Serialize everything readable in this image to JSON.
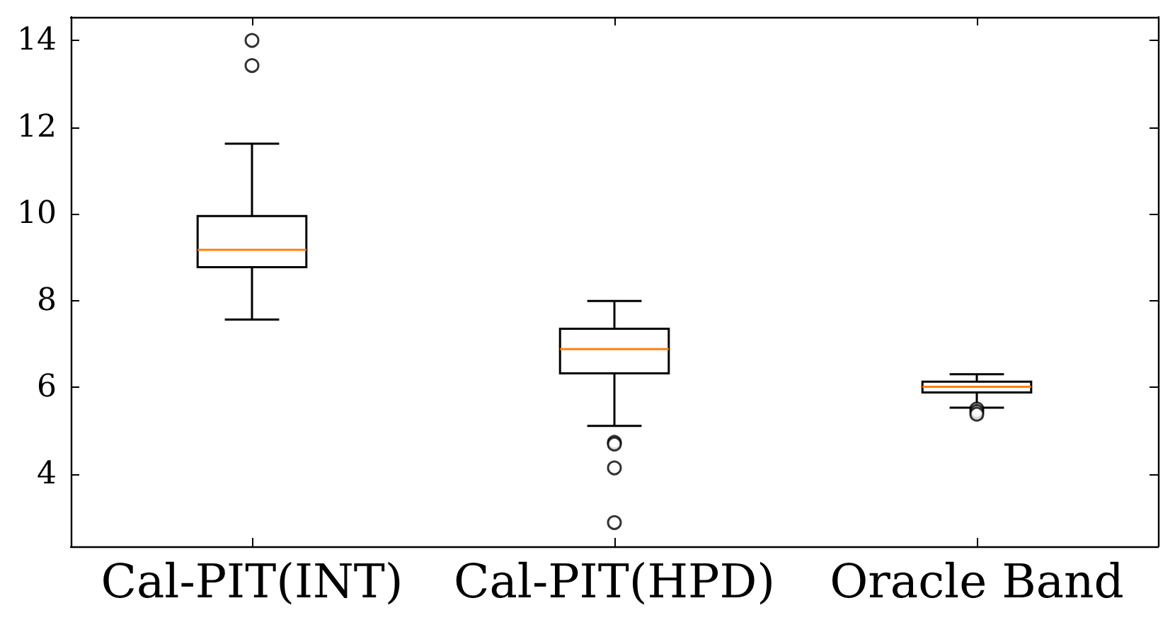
{
  "chart_data": {
    "type": "box",
    "categories": [
      "Cal-PIT(INT)",
      "Cal-PIT(HPD)",
      "Oracle Band"
    ],
    "boxes": [
      {
        "low": 7.56,
        "q1": 8.77,
        "median": 9.17,
        "q3": 9.95,
        "high": 11.62,
        "outliers": [
          14.0,
          13.42
        ]
      },
      {
        "low": 5.11,
        "q1": 6.32,
        "median": 6.88,
        "q3": 7.35,
        "high": 7.99,
        "outliers": [
          4.73,
          4.69,
          4.14,
          2.88
        ]
      },
      {
        "low": 5.53,
        "q1": 5.88,
        "median": 6.01,
        "q3": 6.13,
        "high": 6.3,
        "outliers": [
          5.5,
          5.44,
          5.38
        ]
      }
    ],
    "ylim": [
      2.33,
      14.54
    ],
    "yticks": [
      4,
      6,
      8,
      10,
      12,
      14
    ],
    "grid": false
  }
}
